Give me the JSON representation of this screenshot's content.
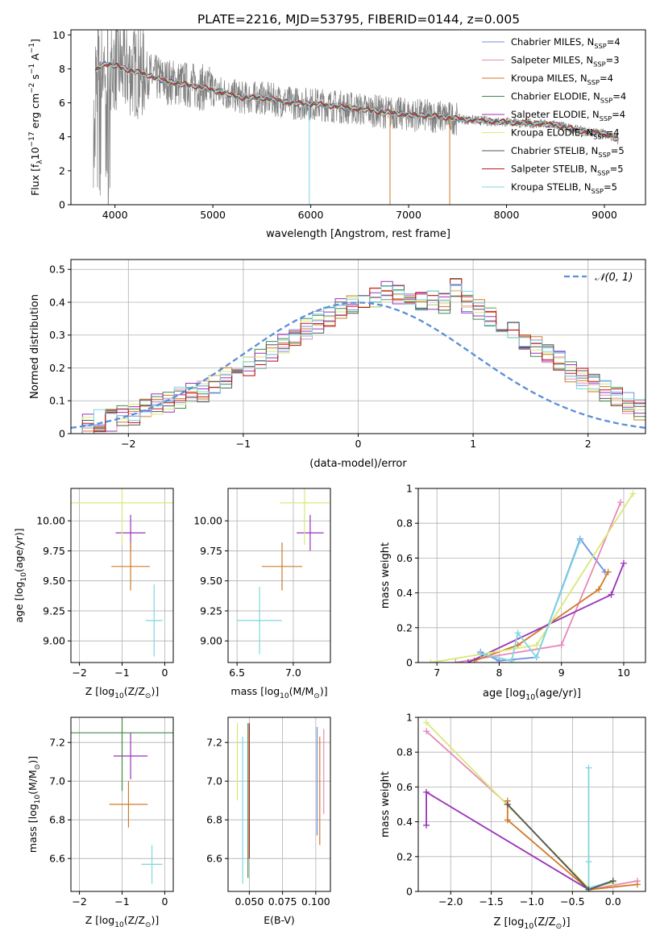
{
  "figure_title": "PLATE=2216, MJD=53795, FIBERID=0144, z=0.005",
  "colors": {
    "Chabrier MILES": "#6f8fe0",
    "Salpeter MILES": "#e888b8",
    "Kroupa MILES": "#d07a28",
    "Chabrier ELODIE": "#3f8a4a",
    "Salpeter ELODIE": "#9a32b8",
    "Kroupa ELODIE": "#d8e878",
    "Chabrier STELIB": "#555555",
    "Salpeter STELIB": "#c01818",
    "Kroupa STELIB": "#7fd6e0",
    "data": "#808080",
    "normal": "#5b8fd6"
  },
  "chart_data": [
    {
      "id": "spectrum",
      "type": "line",
      "xlabel": "wavelength [Angstrom, rest frame]",
      "ylabel_main": "Flux [f",
      "ylabel_sub": "λ",
      "ylabel_mid": "10",
      "ylabel_sup1": "−17",
      "ylabel_rest": " erg cm",
      "ylabel_sup2": "−2",
      "ylabel_s": " s",
      "ylabel_sup3": "−1",
      "ylabel_A": " A",
      "ylabel_sup4": "−1",
      "ylabel_end": "]",
      "xlim": [
        3550,
        9420
      ],
      "ylim": [
        0,
        10.3
      ],
      "xticks": [
        4000,
        5000,
        6000,
        7000,
        8000,
        9000
      ],
      "yticks": [
        0,
        2,
        4,
        6,
        8,
        10
      ],
      "legend_position": "top-right",
      "legend": [
        {
          "name": "Chabrier MILES",
          "n": "=4"
        },
        {
          "name": "Salpeter MILES",
          "n": "=3"
        },
        {
          "name": "Kroupa MILES",
          "n": "=4"
        },
        {
          "name": "Chabrier ELODIE",
          "n": "=4"
        },
        {
          "name": "Salpeter ELODIE",
          "n": "=4"
        },
        {
          "name": "Kroupa ELODIE",
          "n": "=4"
        },
        {
          "name": "Chabrier STELIB",
          "n": "=5"
        },
        {
          "name": "Salpeter STELIB",
          "n": "=5"
        },
        {
          "name": "Kroupa STELIB",
          "n": "=5"
        }
      ],
      "n_label": "N",
      "n_sub": "SSP",
      "continuum": [
        [
          3800,
          7.9
        ],
        [
          3900,
          8.3
        ],
        [
          4000,
          8.2
        ],
        [
          4100,
          8.0
        ],
        [
          4300,
          7.7
        ],
        [
          4500,
          7.3
        ],
        [
          4700,
          7.1
        ],
        [
          4900,
          6.9
        ],
        [
          5100,
          6.6
        ],
        [
          5300,
          6.3
        ],
        [
          5500,
          6.3
        ],
        [
          5800,
          6.0
        ],
        [
          6100,
          5.9
        ],
        [
          6400,
          5.7
        ],
        [
          6700,
          5.5
        ],
        [
          7000,
          5.3
        ],
        [
          7300,
          5.2
        ],
        [
          7600,
          5.0
        ],
        [
          7900,
          4.9
        ],
        [
          8200,
          4.8
        ],
        [
          8500,
          4.7
        ],
        [
          8800,
          4.3
        ],
        [
          9000,
          4.2
        ],
        [
          9150,
          3.8
        ]
      ]
    },
    {
      "id": "residuals",
      "type": "area",
      "xlabel": "(data-model)/error",
      "ylabel": "Normed distribution",
      "xlim": [
        -2.5,
        2.5
      ],
      "ylim": [
        0,
        0.53
      ],
      "xticks": [
        -2,
        -1,
        0,
        1,
        2
      ],
      "yticks": [
        0.0,
        0.1,
        0.2,
        0.3,
        0.4,
        0.5
      ],
      "legend": [
        "𝒩(0, 1)"
      ],
      "legend_position": "top-right",
      "bin_edges_start": -2.5,
      "bin_width": 0.1,
      "values": [
        0.03,
        0.03,
        0.04,
        0.04,
        0.05,
        0.06,
        0.07,
        0.09,
        0.1,
        0.11,
        0.12,
        0.13,
        0.15,
        0.17,
        0.19,
        0.21,
        0.23,
        0.25,
        0.27,
        0.3,
        0.32,
        0.34,
        0.36,
        0.38,
        0.39,
        0.4,
        0.42,
        0.43,
        0.42,
        0.41,
        0.41,
        0.4,
        0.4,
        0.45,
        0.4,
        0.38,
        0.35,
        0.33,
        0.31,
        0.29,
        0.26,
        0.24,
        0.22,
        0.19,
        0.17,
        0.15,
        0.13,
        0.11,
        0.09,
        0.07
      ]
    },
    {
      "id": "age_vs_Z",
      "type": "scatter",
      "xlabel_pre": "Z [log",
      "xlabel_sub": "10",
      "xlabel_post": "(Z/Z",
      "xlabel_end": ")]",
      "ylabel_pre": "age  [log",
      "ylabel_post": "(age/yr)]",
      "xlim": [
        -2.2,
        0.2
      ],
      "ylim": [
        8.82,
        10.27
      ],
      "xticks": [
        -2,
        -1,
        0
      ],
      "yticks": [
        9.0,
        9.25,
        9.5,
        9.75,
        10.0
      ],
      "ytick_labels": [
        "9.00",
        "9.25",
        "9.50",
        "9.75",
        "10.00"
      ],
      "points": [
        {
          "x": -0.8,
          "y": 9.9,
          "xerr": 0.35,
          "yerr": 0.15,
          "series": "Salpeter ELODIE"
        },
        {
          "x": -0.8,
          "y": 9.62,
          "xerr": 0.45,
          "yerr": 0.2,
          "series": "Kroupa MILES"
        },
        {
          "x": -0.25,
          "y": 9.17,
          "xerr": 0.2,
          "yerr": 0.3,
          "series": "Kroupa STELIB"
        },
        {
          "x": -1.0,
          "y": 10.15,
          "xerr": 1.2,
          "yerr": 0.35,
          "series": "Kroupa ELODIE"
        }
      ]
    },
    {
      "id": "age_vs_mass",
      "type": "scatter",
      "xlabel_pre": "mass [log",
      "xlabel_post": "(M/M",
      "xlabel_end": ")]",
      "xlim": [
        6.42,
        7.33
      ],
      "ylim": [
        8.82,
        10.27
      ],
      "xticks": [
        6.5,
        7.0
      ],
      "xtick_labels": [
        "6.5",
        "7.0"
      ],
      "yticks": [
        9.0,
        9.25,
        9.5,
        9.75,
        10.0
      ],
      "ytick_labels": [
        "9.00",
        "9.25",
        "9.50",
        "9.75",
        "10.00"
      ],
      "points": [
        {
          "x": 7.15,
          "y": 9.9,
          "xerr": 0.12,
          "yerr": 0.15,
          "series": "Salpeter ELODIE"
        },
        {
          "x": 6.9,
          "y": 9.62,
          "xerr": 0.18,
          "yerr": 0.2,
          "series": "Kroupa MILES"
        },
        {
          "x": 6.7,
          "y": 9.17,
          "xerr": 0.2,
          "yerr": 0.28,
          "series": "Kroupa STELIB"
        },
        {
          "x": 7.1,
          "y": 10.15,
          "xerr": 0.22,
          "yerr": 0.35,
          "series": "Kroupa ELODIE"
        }
      ]
    },
    {
      "id": "weight_vs_age",
      "type": "line",
      "xlabel_pre": "age  [log",
      "xlabel_post": "(age/yr)]",
      "ylabel": "mass weight",
      "xlim": [
        6.7,
        10.35
      ],
      "ylim": [
        0,
        1.0
      ],
      "xticks": [
        7,
        8,
        9,
        10
      ],
      "yticks": [
        0.0,
        0.2,
        0.4,
        0.6,
        0.8,
        1.0
      ],
      "series": [
        {
          "name": "Chabrier MILES",
          "x": [
            7.7,
            8.0,
            8.6,
            9.3,
            9.7
          ],
          "y": [
            0.06,
            0.01,
            0.03,
            0.71,
            0.52
          ]
        },
        {
          "name": "Salpeter MILES",
          "x": [
            7.3,
            9.0,
            9.95
          ],
          "y": [
            0.0,
            0.1,
            0.92
          ]
        },
        {
          "name": "Kroupa MILES",
          "x": [
            7.6,
            8.3,
            9.6,
            9.75
          ],
          "y": [
            0.01,
            0.1,
            0.42,
            0.52
          ]
        },
        {
          "name": "Salpeter ELODIE",
          "x": [
            7.5,
            9.8,
            10.0
          ],
          "y": [
            0.0,
            0.39,
            0.57
          ]
        },
        {
          "name": "Kroupa ELODIE",
          "x": [
            6.9,
            8.6,
            10.15
          ],
          "y": [
            0.0,
            0.1,
            0.97
          ]
        },
        {
          "name": "Kroupa STELIB",
          "x": [
            7.7,
            8.2,
            8.3,
            8.6,
            9.3
          ],
          "y": [
            0.05,
            0.01,
            0.17,
            0.03,
            0.7
          ]
        }
      ]
    },
    {
      "id": "mass_vs_Z",
      "type": "scatter",
      "xlabel_pre": "Z [log",
      "xlabel_post": "(Z/Z",
      "xlabel_end": ")]",
      "ylabel_pre": "mass [log",
      "ylabel_post": "(M/M",
      "ylabel_end": ")]",
      "xlim": [
        -2.2,
        0.2
      ],
      "ylim": [
        6.43,
        7.33
      ],
      "xticks": [
        -2,
        -1,
        0
      ],
      "yticks": [
        6.6,
        6.8,
        7.0,
        7.2
      ],
      "ytick_labels": [
        "6.6",
        "6.8",
        "7.0",
        "7.2"
      ],
      "points": [
        {
          "x": -0.8,
          "y": 7.13,
          "xerr": 0.4,
          "yerr": 0.12,
          "series": "Salpeter ELODIE"
        },
        {
          "x": -0.85,
          "y": 6.88,
          "xerr": 0.45,
          "yerr": 0.12,
          "series": "Kroupa MILES"
        },
        {
          "x": -0.3,
          "y": 6.57,
          "xerr": 0.25,
          "yerr": 0.1,
          "series": "Kroupa STELIB"
        },
        {
          "x": -1.0,
          "y": 7.25,
          "xerr": 1.2,
          "yerr": 0.3,
          "series": "Chabrier ELODIE"
        }
      ]
    },
    {
      "id": "mass_vs_ebv",
      "type": "scatter",
      "xlabel": "E(B-V)",
      "xlim": [
        0.034,
        0.111
      ],
      "ylim": [
        6.43,
        7.33
      ],
      "xticks": [
        0.05,
        0.075,
        0.1
      ],
      "xtick_labels": [
        "0.050",
        "0.075",
        "0.100"
      ],
      "yticks": [
        6.6,
        6.8,
        7.0,
        7.2
      ],
      "ytick_labels": [
        "6.6",
        "6.8",
        "7.0",
        "7.2"
      ],
      "points": [
        {
          "x": 0.041,
          "y": 7.1,
          "yerr": 0.2,
          "series": "Kroupa ELODIE"
        },
        {
          "x": 0.045,
          "y": 6.85,
          "yerr": 0.38,
          "series": "Kroupa STELIB"
        },
        {
          "x": 0.049,
          "y": 6.9,
          "yerr": 0.4,
          "series": "Chabrier ELODIE"
        },
        {
          "x": 0.05,
          "y": 6.95,
          "yerr": 0.35,
          "series": "Salpeter STELIB"
        },
        {
          "x": 0.101,
          "y": 7.0,
          "yerr": 0.28,
          "series": "Chabrier MILES"
        },
        {
          "x": 0.103,
          "y": 6.95,
          "yerr": 0.28,
          "series": "Kroupa MILES"
        },
        {
          "x": 0.106,
          "y": 7.05,
          "yerr": 0.22,
          "series": "Salpeter MILES"
        }
      ]
    },
    {
      "id": "weight_vs_Z",
      "type": "line",
      "xlabel_pre": "Z [log",
      "xlabel_post": "(Z/Z",
      "xlabel_end": ")]",
      "ylabel": "mass weight",
      "xlim": [
        -2.4,
        0.4
      ],
      "ylim": [
        0,
        1.0
      ],
      "xticks": [
        -2.0,
        -1.5,
        -1.0,
        -0.5,
        0.0
      ],
      "xtick_labels": [
        "−2.0",
        "−1.5",
        "−1.0",
        "−0.5",
        "0.0"
      ],
      "yticks": [
        0.0,
        0.2,
        0.4,
        0.6,
        0.8,
        1.0
      ],
      "series": [
        {
          "name": "Salpeter MILES",
          "x": [
            -2.3,
            -1.3,
            -0.3,
            0.3
          ],
          "y": [
            0.92,
            0.5,
            0.01,
            0.06
          ]
        },
        {
          "name": "Kroupa MILES",
          "x": [
            -1.3,
            -1.3,
            -0.3,
            0.3
          ],
          "y": [
            0.52,
            0.41,
            0.01,
            0.04
          ]
        },
        {
          "name": "Salpeter ELODIE",
          "x": [
            -2.3,
            -2.3,
            -0.3
          ],
          "y": [
            0.38,
            0.57,
            0.01
          ]
        },
        {
          "name": "Kroupa ELODIE",
          "x": [
            -2.3,
            -0.3,
            0.0
          ],
          "y": [
            0.97,
            0.02,
            0.05
          ]
        },
        {
          "name": "Kroupa STELIB",
          "x": [
            -0.3,
            -0.3,
            -0.3,
            0.0
          ],
          "y": [
            0.71,
            0.17,
            0.02,
            0.06
          ]
        },
        {
          "name": "Chabrier STELIB",
          "x": [
            -1.3,
            -0.3,
            0.0
          ],
          "y": [
            0.5,
            0.01,
            0.06
          ]
        }
      ]
    }
  ]
}
